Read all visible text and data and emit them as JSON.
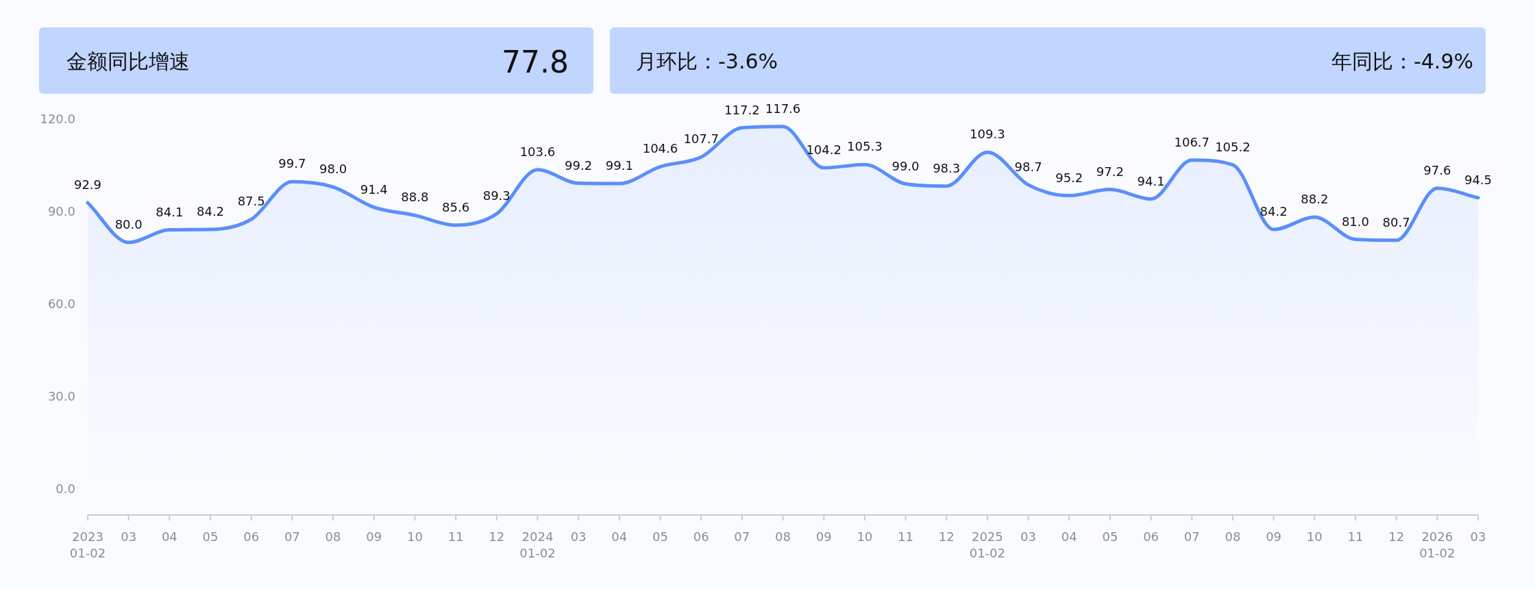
{
  "chart_data": {
    "type": "area",
    "title": "金额同比增速",
    "annotations": [
      "77.8",
      "月环比：-3.6%",
      "年同比：-4.9%"
    ],
    "categories": [
      "2023\n01-02",
      "03",
      "04",
      "05",
      "06",
      "07",
      "08",
      "09",
      "10",
      "11",
      "12",
      "2024\n01-02",
      "03",
      "04",
      "05",
      "06",
      "07",
      "08",
      "09",
      "10",
      "11",
      "12",
      "2025\n01-02",
      "03",
      "04",
      "05",
      "06",
      "07",
      "08",
      "09",
      "10",
      "11",
      "12",
      "2026\n01-02",
      "03"
    ],
    "values": [
      92.9,
      80.0,
      84.1,
      84.2,
      87.5,
      99.7,
      98.0,
      91.4,
      88.8,
      85.6,
      89.3,
      103.6,
      99.2,
      99.1,
      104.6,
      107.7,
      117.2,
      117.6,
      104.2,
      105.3,
      99.0,
      98.3,
      109.3,
      98.7,
      95.2,
      97.2,
      94.1,
      106.7,
      105.2,
      84.2,
      88.2,
      81.0,
      80.7,
      97.6,
      94.5
    ],
    "color": "#5b8ff9",
    "ylim": [
      0,
      120
    ],
    "yticks": [
      {
        "value": 0,
        "label": "0.0"
      },
      {
        "value": 30,
        "label": "30.0"
      },
      {
        "value": 60,
        "label": "60.0"
      },
      {
        "value": 90,
        "label": "90.0"
      },
      {
        "value": 120,
        "label": "120.0"
      }
    ],
    "value_labels": [
      "92.9",
      "80.0",
      "84.1",
      "84.2",
      "87.5",
      "99.7",
      "98.0",
      "91.4",
      "88.8",
      "85.6",
      "89.3",
      "103.6",
      "99.2",
      "99.1",
      "104.6",
      "107.7",
      "117.2",
      "117.6",
      "104.2",
      "105.3",
      "99.0",
      "98.3",
      "109.3",
      "98.7",
      "95.2",
      "97.2",
      "94.1",
      "106.7",
      "105.2",
      "84.2",
      "88.2",
      "81.0",
      "80.7",
      "97.6",
      "94.5"
    ],
    "grid": false,
    "marker": "none"
  }
}
